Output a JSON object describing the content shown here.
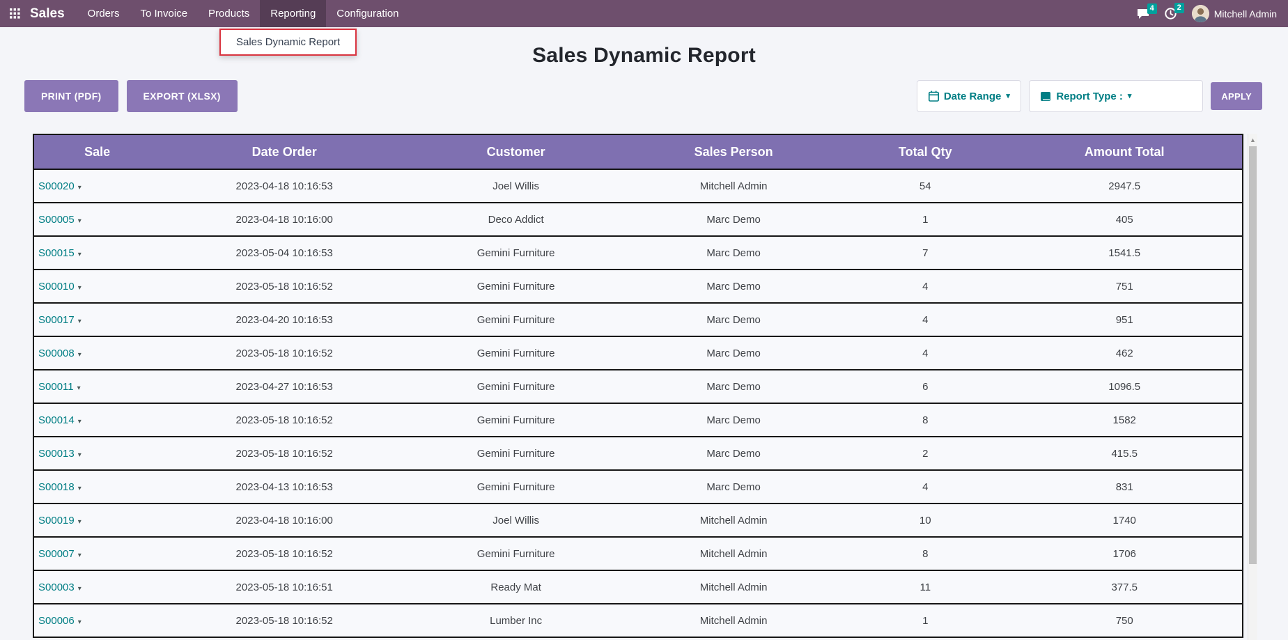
{
  "colors": {
    "navbar": "#6e4f6d",
    "page_bg": "#f4f5f9",
    "header_purple": "#7f70b1",
    "button_purple": "#8b77b6",
    "teal": "#017e84",
    "badge": "#00a09d",
    "highlight_red": "#d9333f"
  },
  "nav": {
    "brand": "Sales",
    "items": [
      {
        "label": "Orders"
      },
      {
        "label": "To Invoice"
      },
      {
        "label": "Products"
      },
      {
        "label": "Reporting",
        "active": true
      },
      {
        "label": "Configuration"
      }
    ],
    "dropdown_item": "Sales Dynamic Report",
    "messages_count": "4",
    "activities_count": "2",
    "user_name": "Mitchell Admin"
  },
  "page": {
    "title": "Sales Dynamic Report"
  },
  "toolbar": {
    "print_label": "PRINT (PDF)",
    "export_label": "EXPORT (XLSX)",
    "date_range_label": "Date Range",
    "report_type_label": "Report Type :",
    "apply_label": "APPLY"
  },
  "icons": {
    "caret_down": "▾",
    "scroll_up_arrow": "▲"
  },
  "table": {
    "columns": [
      "Sale",
      "Date Order",
      "Customer",
      "Sales Person",
      "Total Qty",
      "Amount Total"
    ],
    "rows": [
      {
        "sale": "S00020",
        "date_order": "2023-04-18 10:16:53",
        "customer": "Joel Willis",
        "sales_person": "Mitchell Admin",
        "total_qty": "54",
        "amount_total": "2947.5"
      },
      {
        "sale": "S00005",
        "date_order": "2023-04-18 10:16:00",
        "customer": "Deco Addict",
        "sales_person": "Marc Demo",
        "total_qty": "1",
        "amount_total": "405"
      },
      {
        "sale": "S00015",
        "date_order": "2023-05-04 10:16:53",
        "customer": "Gemini Furniture",
        "sales_person": "Marc Demo",
        "total_qty": "7",
        "amount_total": "1541.5"
      },
      {
        "sale": "S00010",
        "date_order": "2023-05-18 10:16:52",
        "customer": "Gemini Furniture",
        "sales_person": "Marc Demo",
        "total_qty": "4",
        "amount_total": "751"
      },
      {
        "sale": "S00017",
        "date_order": "2023-04-20 10:16:53",
        "customer": "Gemini Furniture",
        "sales_person": "Marc Demo",
        "total_qty": "4",
        "amount_total": "951"
      },
      {
        "sale": "S00008",
        "date_order": "2023-05-18 10:16:52",
        "customer": "Gemini Furniture",
        "sales_person": "Marc Demo",
        "total_qty": "4",
        "amount_total": "462"
      },
      {
        "sale": "S00011",
        "date_order": "2023-04-27 10:16:53",
        "customer": "Gemini Furniture",
        "sales_person": "Marc Demo",
        "total_qty": "6",
        "amount_total": "1096.5"
      },
      {
        "sale": "S00014",
        "date_order": "2023-05-18 10:16:52",
        "customer": "Gemini Furniture",
        "sales_person": "Marc Demo",
        "total_qty": "8",
        "amount_total": "1582"
      },
      {
        "sale": "S00013",
        "date_order": "2023-05-18 10:16:52",
        "customer": "Gemini Furniture",
        "sales_person": "Marc Demo",
        "total_qty": "2",
        "amount_total": "415.5"
      },
      {
        "sale": "S00018",
        "date_order": "2023-04-13 10:16:53",
        "customer": "Gemini Furniture",
        "sales_person": "Marc Demo",
        "total_qty": "4",
        "amount_total": "831"
      },
      {
        "sale": "S00019",
        "date_order": "2023-04-18 10:16:00",
        "customer": "Joel Willis",
        "sales_person": "Mitchell Admin",
        "total_qty": "10",
        "amount_total": "1740"
      },
      {
        "sale": "S00007",
        "date_order": "2023-05-18 10:16:52",
        "customer": "Gemini Furniture",
        "sales_person": "Mitchell Admin",
        "total_qty": "8",
        "amount_total": "1706"
      },
      {
        "sale": "S00003",
        "date_order": "2023-05-18 10:16:51",
        "customer": "Ready Mat",
        "sales_person": "Mitchell Admin",
        "total_qty": "11",
        "amount_total": "377.5"
      },
      {
        "sale": "S00006",
        "date_order": "2023-05-18 10:16:52",
        "customer": "Lumber Inc",
        "sales_person": "Mitchell Admin",
        "total_qty": "1",
        "amount_total": "750"
      }
    ]
  }
}
